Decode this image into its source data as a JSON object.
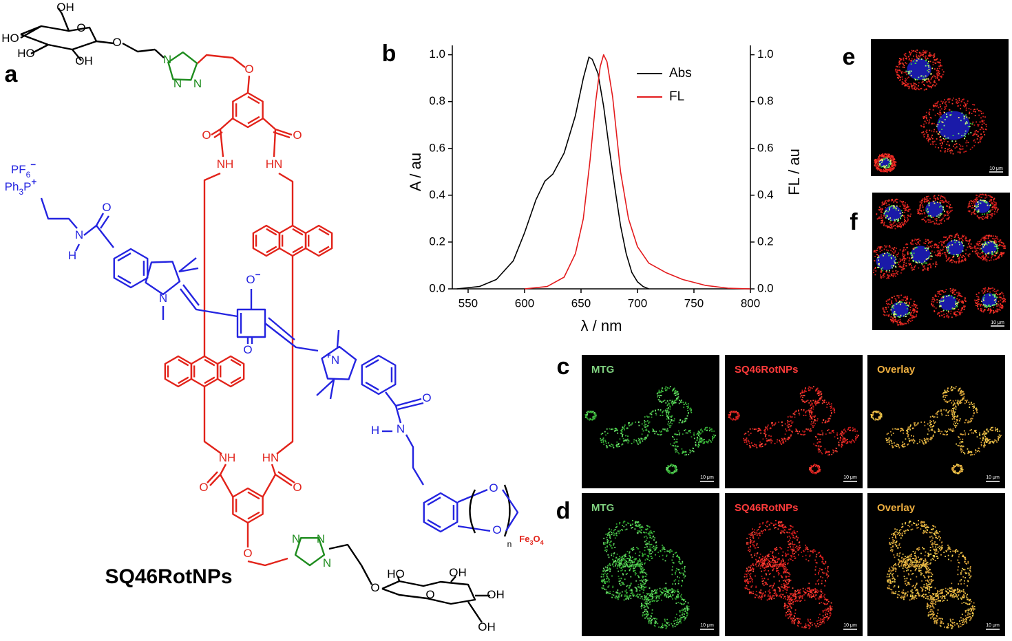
{
  "panel_labels": [
    "a",
    "b",
    "c",
    "d",
    "e",
    "f"
  ],
  "structure": {
    "name": "SQ46RotNPs",
    "labels": [
      "OH",
      "HO",
      "O",
      "O",
      "HO",
      "OH",
      "N",
      "N",
      "N",
      "O",
      "O",
      "O",
      "NH",
      "HN",
      "PF6−",
      "Ph3P+",
      "O",
      "N",
      "H",
      "N",
      "O−",
      "O",
      "+N",
      "O",
      "N",
      "H",
      "O",
      "O",
      "n",
      "Fe3O4",
      "NH",
      "HN",
      "O",
      "O",
      "O",
      "N",
      "N",
      "N",
      "HO",
      "OH",
      "O",
      "O",
      "OH",
      "OH"
    ]
  },
  "chart_data": {
    "type": "line",
    "x_label": "λ / nm",
    "y_label": "A / au",
    "y2_label": "FL / au",
    "xlim": [
      536,
      800
    ],
    "xticks": [
      550,
      600,
      650,
      700,
      750,
      800
    ],
    "ylim": [
      0,
      1.04
    ],
    "yticks": [
      {
        "value": 0,
        "label": "0.0"
      },
      {
        "value": 0.2,
        "label": "0.2"
      },
      {
        "value": 0.4,
        "label": "0.4"
      },
      {
        "value": 0.6,
        "label": "0.6"
      },
      {
        "value": 0.8,
        "label": "0.8"
      },
      {
        "value": 1,
        "label": "1.0"
      }
    ],
    "y2lim": [
      0,
      1.04
    ],
    "y2ticks": [
      {
        "value": 0,
        "label": "0.0"
      },
      {
        "value": 0.2,
        "label": "0.2"
      },
      {
        "value": 0.4,
        "label": "0.4"
      },
      {
        "value": 0.6,
        "label": "0.6"
      },
      {
        "value": 0.8,
        "label": "0.8"
      },
      {
        "value": 1,
        "label": "1.0"
      }
    ],
    "legend": "upper right",
    "series": [
      {
        "name": "Abs",
        "color": "#000000",
        "x": [
          540,
          560,
          575,
          590,
          600,
          610,
          618,
          625,
          635,
          645,
          652,
          657,
          660,
          665,
          670,
          675,
          680,
          685,
          690,
          695,
          700,
          705,
          710
        ],
        "values": [
          0,
          0.01,
          0.04,
          0.12,
          0.24,
          0.38,
          0.46,
          0.49,
          0.58,
          0.74,
          0.9,
          0.99,
          0.98,
          0.92,
          0.78,
          0.6,
          0.43,
          0.27,
          0.15,
          0.07,
          0.03,
          0.01,
          0
        ]
      },
      {
        "name": "FL",
        "color": "#e31a1c",
        "axis": "y2",
        "x": [
          600,
          620,
          635,
          645,
          652,
          658,
          663,
          667,
          670,
          673,
          678,
          685,
          692,
          700,
          710,
          725,
          740,
          760,
          780,
          800
        ],
        "values": [
          0,
          0.01,
          0.05,
          0.15,
          0.3,
          0.55,
          0.8,
          0.95,
          1,
          0.97,
          0.82,
          0.5,
          0.3,
          0.18,
          0.11,
          0.07,
          0.04,
          0.015,
          0.003,
          0
        ]
      }
    ]
  },
  "micrographs": {
    "c": {
      "panels": [
        {
          "title": "MTG",
          "scale_bar": "10 μm"
        },
        {
          "title": "SQ46RotNPs",
          "scale_bar": "10 μm"
        },
        {
          "title": "Overlay",
          "scale_bar": "10 μm"
        }
      ]
    },
    "d": {
      "panels": [
        {
          "title": "MTG",
          "scale_bar": "10 μm"
        },
        {
          "title": "SQ46RotNPs",
          "scale_bar": "10 μm"
        },
        {
          "title": "Overlay",
          "scale_bar": "10 μm"
        }
      ]
    },
    "e": {
      "scale_bar": "10 μm"
    },
    "f": {
      "scale_bar": "10 μm"
    }
  }
}
